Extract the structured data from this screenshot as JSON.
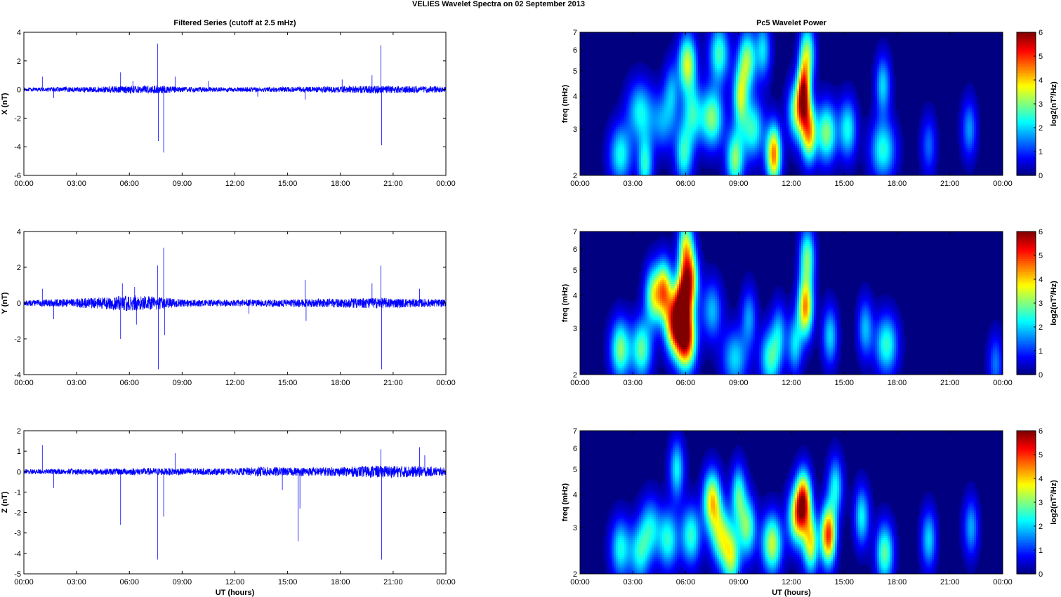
{
  "figure": {
    "suptitle": "VELIES Wavelet Spectra on 02 September 2013"
  },
  "chart_data": [
    {
      "type": "line",
      "title": "Filtered Series (cutoff at 2.5 mHz)",
      "ylabel": "X (nT)",
      "xlabel": "",
      "x_ticks": [
        "00:00",
        "03:00",
        "06:00",
        "09:00",
        "12:00",
        "15:00",
        "18:00",
        "21:00",
        "00:00"
      ],
      "xlim_hours": [
        0,
        24
      ],
      "ylim": [
        -6,
        4
      ],
      "y_ticks": [
        "-6",
        "-4",
        "-2",
        "0",
        "2",
        "4"
      ],
      "color": "#0000ff",
      "noise_amplitude": [
        [
          0,
          0.12
        ],
        [
          5,
          0.22
        ],
        [
          7.6,
          0.3
        ],
        [
          9,
          0.18
        ],
        [
          12,
          0.16
        ],
        [
          17,
          0.2
        ],
        [
          20,
          0.28
        ],
        [
          24,
          0.2
        ]
      ],
      "spikes": [
        [
          1.05,
          0.9
        ],
        [
          1.7,
          -0.6
        ],
        [
          5.5,
          1.2
        ],
        [
          6.2,
          0.6
        ],
        [
          7.6,
          3.2
        ],
        [
          7.65,
          -3.6
        ],
        [
          7.95,
          -4.4
        ],
        [
          8.6,
          0.9
        ],
        [
          10.5,
          0.6
        ],
        [
          13.3,
          -0.5
        ],
        [
          16.0,
          -0.7
        ],
        [
          18.1,
          0.7
        ],
        [
          19.8,
          1.0
        ],
        [
          20.3,
          3.1
        ],
        [
          20.35,
          -3.9
        ]
      ]
    },
    {
      "type": "heatmap",
      "title": "Pc5 Wavelet Power",
      "ylabel": "freq (mHz)",
      "xlabel": "",
      "yscale": "log",
      "x_ticks": [
        "00:00",
        "03:00",
        "06:00",
        "09:00",
        "12:00",
        "15:00",
        "18:00",
        "21:00",
        "00:00"
      ],
      "xlim_hours": [
        0,
        24
      ],
      "ylim_mhz": [
        2,
        7
      ],
      "y_ticks": [
        "2",
        "3",
        "4",
        "5",
        "6",
        "7"
      ],
      "colorbar": {
        "label": "log2(nT²/Hz)",
        "min": 0,
        "max": 6,
        "ticks": [
          "0",
          "1",
          "2",
          "3",
          "4",
          "5",
          "6"
        ],
        "colormap": "jet"
      },
      "blobs": [
        [
          2.3,
          2.4,
          0.45,
          2.3
        ],
        [
          3.4,
          3.5,
          0.5,
          2.2
        ],
        [
          3.7,
          2.2,
          0.3,
          2.4
        ],
        [
          4.7,
          3.2,
          0.5,
          1.6
        ],
        [
          5.2,
          4.2,
          0.3,
          1.5
        ],
        [
          5.9,
          2.4,
          0.35,
          2.4
        ],
        [
          6.1,
          5.3,
          0.35,
          3.5
        ],
        [
          6.4,
          3.4,
          0.4,
          2.2
        ],
        [
          7.5,
          3.3,
          0.45,
          3.0
        ],
        [
          7.9,
          5.8,
          0.4,
          2.6
        ],
        [
          8.8,
          2.3,
          0.35,
          3.0
        ],
        [
          9.1,
          4.0,
          0.3,
          3.0
        ],
        [
          9.5,
          5.5,
          0.35,
          3.0
        ],
        [
          9.8,
          3.0,
          0.45,
          2.5
        ],
        [
          10.4,
          6.0,
          0.3,
          2.0
        ],
        [
          11.0,
          2.4,
          0.3,
          4.5
        ],
        [
          12.3,
          3.5,
          0.35,
          3.0
        ],
        [
          12.7,
          4.1,
          0.25,
          4.7
        ],
        [
          12.9,
          5.8,
          0.3,
          3.0
        ],
        [
          13.0,
          2.9,
          0.3,
          4.0
        ],
        [
          14.0,
          2.9,
          0.4,
          3.0
        ],
        [
          15.2,
          3.0,
          0.35,
          2.3
        ],
        [
          17.2,
          2.5,
          0.5,
          2.4
        ],
        [
          17.2,
          4.4,
          0.3,
          2.0
        ],
        [
          19.8,
          2.6,
          0.3,
          1.3
        ],
        [
          22.1,
          3.0,
          0.3,
          1.6
        ]
      ]
    },
    {
      "type": "line",
      "title": "",
      "ylabel": "Y (nT)",
      "xlabel": "",
      "x_ticks": [
        "00:00",
        "03:00",
        "06:00",
        "09:00",
        "12:00",
        "15:00",
        "18:00",
        "21:00",
        "00:00"
      ],
      "xlim_hours": [
        0,
        24
      ],
      "ylim": [
        -4,
        4
      ],
      "y_ticks": [
        "-4",
        "-2",
        "0",
        "2",
        "4"
      ],
      "color": "#0000ff",
      "noise_amplitude": [
        [
          0,
          0.15
        ],
        [
          4,
          0.3
        ],
        [
          6,
          0.45
        ],
        [
          7.6,
          0.35
        ],
        [
          9,
          0.2
        ],
        [
          12,
          0.18
        ],
        [
          18,
          0.25
        ],
        [
          20,
          0.3
        ],
        [
          24,
          0.2
        ]
      ],
      "spikes": [
        [
          1.05,
          0.8
        ],
        [
          1.7,
          -0.9
        ],
        [
          5.5,
          -2.0
        ],
        [
          5.6,
          1.1
        ],
        [
          6.3,
          0.9
        ],
        [
          6.4,
          -1.2
        ],
        [
          7.6,
          2.1
        ],
        [
          7.65,
          -3.7
        ],
        [
          7.95,
          3.1
        ],
        [
          8.0,
          -1.8
        ],
        [
          12.8,
          -0.6
        ],
        [
          16.0,
          1.3
        ],
        [
          16.05,
          -1.0
        ],
        [
          19.8,
          1.1
        ],
        [
          20.3,
          2.1
        ],
        [
          20.35,
          -3.7
        ],
        [
          22.5,
          0.8
        ]
      ]
    },
    {
      "type": "heatmap",
      "title": "",
      "ylabel": "freq (mHz)",
      "xlabel": "",
      "yscale": "log",
      "x_ticks": [
        "00:00",
        "03:00",
        "06:00",
        "09:00",
        "12:00",
        "15:00",
        "18:00",
        "21:00",
        "00:00"
      ],
      "xlim_hours": [
        0,
        24
      ],
      "ylim_mhz": [
        2,
        7
      ],
      "y_ticks": [
        "2",
        "3",
        "4",
        "5",
        "6",
        "7"
      ],
      "colorbar": {
        "label": "log2(nT²/Hz)",
        "min": 0,
        "max": 6,
        "ticks": [
          "0",
          "1",
          "2",
          "3",
          "4",
          "5",
          "6"
        ],
        "colormap": "jet"
      },
      "blobs": [
        [
          2.3,
          2.5,
          0.4,
          3.0
        ],
        [
          3.5,
          2.5,
          0.4,
          2.8
        ],
        [
          4.2,
          4.0,
          0.35,
          3.3
        ],
        [
          4.8,
          4.2,
          0.3,
          3.6
        ],
        [
          5.3,
          3.1,
          0.35,
          4.0
        ],
        [
          5.8,
          3.7,
          0.35,
          4.8
        ],
        [
          6.0,
          2.7,
          0.4,
          5.5
        ],
        [
          6.2,
          4.6,
          0.35,
          4.2
        ],
        [
          6.0,
          6.2,
          0.3,
          3.0
        ],
        [
          7.5,
          3.5,
          0.4,
          1.8
        ],
        [
          8.8,
          2.3,
          0.5,
          2.0
        ],
        [
          9.6,
          3.3,
          0.3,
          1.6
        ],
        [
          10.8,
          2.3,
          0.4,
          2.5
        ],
        [
          11.3,
          2.9,
          0.3,
          1.6
        ],
        [
          12.2,
          2.6,
          0.3,
          2.0
        ],
        [
          12.8,
          3.6,
          0.3,
          4.3
        ],
        [
          12.9,
          5.6,
          0.3,
          2.8
        ],
        [
          14.2,
          2.8,
          0.3,
          2.0
        ],
        [
          16.2,
          3.0,
          0.3,
          1.8
        ],
        [
          17.4,
          2.6,
          0.45,
          2.5
        ],
        [
          23.6,
          2.2,
          0.3,
          1.4
        ]
      ]
    },
    {
      "type": "line",
      "title": "",
      "ylabel": "Z (nT)",
      "xlabel": "UT (hours)",
      "x_ticks": [
        "00:00",
        "03:00",
        "06:00",
        "09:00",
        "12:00",
        "15:00",
        "18:00",
        "21:00",
        "00:00"
      ],
      "xlim_hours": [
        0,
        24
      ],
      "ylim": [
        -5,
        2
      ],
      "y_ticks": [
        "-5",
        "-4",
        "-3",
        "-2",
        "-1",
        "0",
        "1",
        "2"
      ],
      "color": "#0000ff",
      "noise_amplitude": [
        [
          0,
          0.12
        ],
        [
          5,
          0.16
        ],
        [
          8,
          0.18
        ],
        [
          12,
          0.15
        ],
        [
          13.5,
          0.25
        ],
        [
          15,
          0.2
        ],
        [
          18,
          0.22
        ],
        [
          20,
          0.3
        ],
        [
          22,
          0.28
        ],
        [
          24,
          0.2
        ]
      ],
      "spikes": [
        [
          1.05,
          1.3
        ],
        [
          1.7,
          -0.8
        ],
        [
          5.5,
          -2.6
        ],
        [
          7.6,
          -4.3
        ],
        [
          7.95,
          -2.2
        ],
        [
          8.6,
          0.9
        ],
        [
          14.7,
          -0.9
        ],
        [
          15.6,
          -3.4
        ],
        [
          15.7,
          -1.8
        ],
        [
          20.3,
          1.1
        ],
        [
          20.35,
          -4.3
        ],
        [
          22.5,
          1.2
        ],
        [
          22.8,
          0.8
        ]
      ]
    },
    {
      "type": "heatmap",
      "title": "",
      "ylabel": "freq (mHz)",
      "xlabel": "UT (hours)",
      "yscale": "log",
      "x_ticks": [
        "00:00",
        "03:00",
        "06:00",
        "09:00",
        "12:00",
        "15:00",
        "18:00",
        "21:00",
        "00:00"
      ],
      "xlim_hours": [
        0,
        24
      ],
      "ylim_mhz": [
        2,
        7
      ],
      "y_ticks": [
        "2",
        "3",
        "4",
        "5",
        "6",
        "7"
      ],
      "colorbar": {
        "label": "log2(nT²/Hz)",
        "min": 0,
        "max": 6,
        "ticks": [
          "0",
          "1",
          "2",
          "3",
          "4",
          "5",
          "6"
        ],
        "colormap": "jet"
      },
      "blobs": [
        [
          2.3,
          2.5,
          0.4,
          2.3
        ],
        [
          3.4,
          2.4,
          0.4,
          2.2
        ],
        [
          4.0,
          3.0,
          0.4,
          2.0
        ],
        [
          5.0,
          2.7,
          0.4,
          2.4
        ],
        [
          5.5,
          5.0,
          0.3,
          2.2
        ],
        [
          6.3,
          2.8,
          0.4,
          2.5
        ],
        [
          7.5,
          3.8,
          0.35,
          3.8
        ],
        [
          8.0,
          2.8,
          0.4,
          3.0
        ],
        [
          8.6,
          2.3,
          0.35,
          3.0
        ],
        [
          9.0,
          4.0,
          0.3,
          2.5
        ],
        [
          9.5,
          3.0,
          0.35,
          2.8
        ],
        [
          10.9,
          2.6,
          0.4,
          3.4
        ],
        [
          12.3,
          3.3,
          0.35,
          3.5
        ],
        [
          12.7,
          3.8,
          0.3,
          4.6
        ],
        [
          13.1,
          2.6,
          0.3,
          3.5
        ],
        [
          14.1,
          2.8,
          0.3,
          5.0
        ],
        [
          14.5,
          4.3,
          0.3,
          2.2
        ],
        [
          16.0,
          3.3,
          0.3,
          2.2
        ],
        [
          17.3,
          2.4,
          0.35,
          2.8
        ],
        [
          19.8,
          2.7,
          0.3,
          2.0
        ],
        [
          22.2,
          3.0,
          0.3,
          1.7
        ]
      ]
    }
  ]
}
